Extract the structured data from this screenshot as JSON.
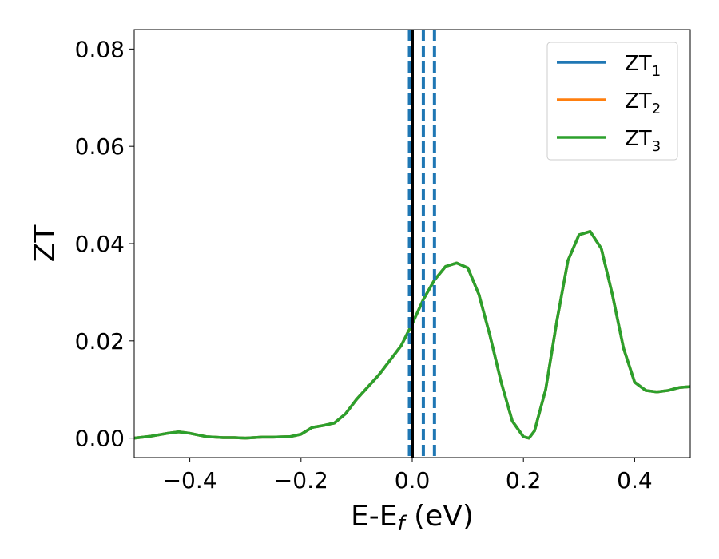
{
  "chart_data": {
    "type": "line",
    "title": "",
    "xlabel": "E-E",
    "xlabel_sub": "f",
    "xlabel_unit": " (eV)",
    "ylabel": "ZT",
    "xlim": [
      -0.5,
      0.5
    ],
    "ylim": [
      -0.004,
      0.084
    ],
    "xticks": [
      -0.4,
      -0.2,
      0.0,
      0.2,
      0.4
    ],
    "xtick_labels": [
      "−0.4",
      "−0.2",
      "0.0",
      "0.2",
      "0.4"
    ],
    "yticks": [
      0.0,
      0.02,
      0.04,
      0.06,
      0.08
    ],
    "ytick_labels": [
      "0.00",
      "0.02",
      "0.04",
      "0.06",
      "0.08"
    ],
    "grid": false,
    "legend_position": "top-right",
    "series": [
      {
        "name": "ZT",
        "sub": "1",
        "color": "#1f77b4",
        "x": [
          -0.5,
          -0.47,
          -0.44,
          -0.42,
          -0.4,
          -0.37,
          -0.34,
          -0.32,
          -0.3,
          -0.27,
          -0.25,
          -0.22,
          -0.2,
          -0.18,
          -0.16,
          -0.14,
          -0.12,
          -0.1,
          -0.08,
          -0.06,
          -0.04,
          -0.02,
          0.0,
          0.02,
          0.04,
          0.06,
          0.08,
          0.1,
          0.12,
          0.14,
          0.16,
          0.18,
          0.2,
          0.21,
          0.22,
          0.24,
          0.26,
          0.28,
          0.3,
          0.32,
          0.34,
          0.36,
          0.38,
          0.4,
          0.42,
          0.44,
          0.46,
          0.48,
          0.5
        ],
        "y": [
          0.0,
          0.0004,
          0.001,
          0.0013,
          0.001,
          0.0003,
          0.0001,
          0.0001,
          0.0,
          0.0002,
          0.0002,
          0.0003,
          0.0008,
          0.0022,
          0.0026,
          0.0031,
          0.005,
          0.008,
          0.0105,
          0.013,
          0.016,
          0.019,
          0.0235,
          0.0285,
          0.0325,
          0.0353,
          0.036,
          0.035,
          0.0295,
          0.021,
          0.0115,
          0.0035,
          0.0003,
          0.0,
          0.0015,
          0.01,
          0.024,
          0.0365,
          0.0418,
          0.0425,
          0.039,
          0.0295,
          0.0185,
          0.0115,
          0.0098,
          0.0095,
          0.0098,
          0.0104,
          0.0106
        ]
      },
      {
        "name": "ZT",
        "sub": "2",
        "color": "#ff7f0e",
        "x": [
          -0.5,
          -0.47,
          -0.44,
          -0.42,
          -0.4,
          -0.37,
          -0.34,
          -0.32,
          -0.3,
          -0.27,
          -0.25,
          -0.22,
          -0.2,
          -0.18,
          -0.16,
          -0.14,
          -0.12,
          -0.1,
          -0.08,
          -0.06,
          -0.04,
          -0.02,
          0.0,
          0.02,
          0.04,
          0.06,
          0.08,
          0.1,
          0.12,
          0.14,
          0.16,
          0.18,
          0.2,
          0.21,
          0.22,
          0.24,
          0.26,
          0.28,
          0.3,
          0.32,
          0.34,
          0.36,
          0.38,
          0.4,
          0.42,
          0.44,
          0.46,
          0.48,
          0.5
        ],
        "y": [
          0.0,
          0.0004,
          0.001,
          0.0013,
          0.001,
          0.0003,
          0.0001,
          0.0001,
          0.0,
          0.0002,
          0.0002,
          0.0003,
          0.0008,
          0.0022,
          0.0026,
          0.0031,
          0.005,
          0.008,
          0.0105,
          0.013,
          0.016,
          0.019,
          0.0235,
          0.0285,
          0.0325,
          0.0353,
          0.036,
          0.035,
          0.0295,
          0.021,
          0.0115,
          0.0035,
          0.0003,
          0.0,
          0.0015,
          0.01,
          0.024,
          0.0365,
          0.0418,
          0.0425,
          0.039,
          0.0295,
          0.0185,
          0.0115,
          0.0098,
          0.0095,
          0.0098,
          0.0104,
          0.0106
        ]
      },
      {
        "name": "ZT",
        "sub": "3",
        "color": "#2ca02c",
        "x": [
          -0.5,
          -0.47,
          -0.44,
          -0.42,
          -0.4,
          -0.37,
          -0.34,
          -0.32,
          -0.3,
          -0.27,
          -0.25,
          -0.22,
          -0.2,
          -0.18,
          -0.16,
          -0.14,
          -0.12,
          -0.1,
          -0.08,
          -0.06,
          -0.04,
          -0.02,
          0.0,
          0.02,
          0.04,
          0.06,
          0.08,
          0.1,
          0.12,
          0.14,
          0.16,
          0.18,
          0.2,
          0.21,
          0.22,
          0.24,
          0.26,
          0.28,
          0.3,
          0.32,
          0.34,
          0.36,
          0.38,
          0.4,
          0.42,
          0.44,
          0.46,
          0.48,
          0.5
        ],
        "y": [
          0.0,
          0.0004,
          0.001,
          0.0013,
          0.001,
          0.0003,
          0.0001,
          0.0001,
          0.0,
          0.0002,
          0.0002,
          0.0003,
          0.0008,
          0.0022,
          0.0026,
          0.0031,
          0.005,
          0.008,
          0.0105,
          0.013,
          0.016,
          0.019,
          0.0235,
          0.0285,
          0.0325,
          0.0353,
          0.036,
          0.035,
          0.0295,
          0.021,
          0.0115,
          0.0035,
          0.0003,
          0.0,
          0.0015,
          0.01,
          0.024,
          0.0365,
          0.0418,
          0.0425,
          0.039,
          0.0295,
          0.0185,
          0.0115,
          0.0098,
          0.0095,
          0.0098,
          0.0104,
          0.0106
        ]
      }
    ],
    "vlines": [
      {
        "x": 0.0,
        "color": "#000000",
        "style": "solid"
      },
      {
        "x": -0.005,
        "color": "#1f77b4",
        "style": "dashed"
      },
      {
        "x": 0.02,
        "color": "#1f77b4",
        "style": "dashed"
      },
      {
        "x": 0.04,
        "color": "#1f77b4",
        "style": "dashed"
      }
    ]
  }
}
